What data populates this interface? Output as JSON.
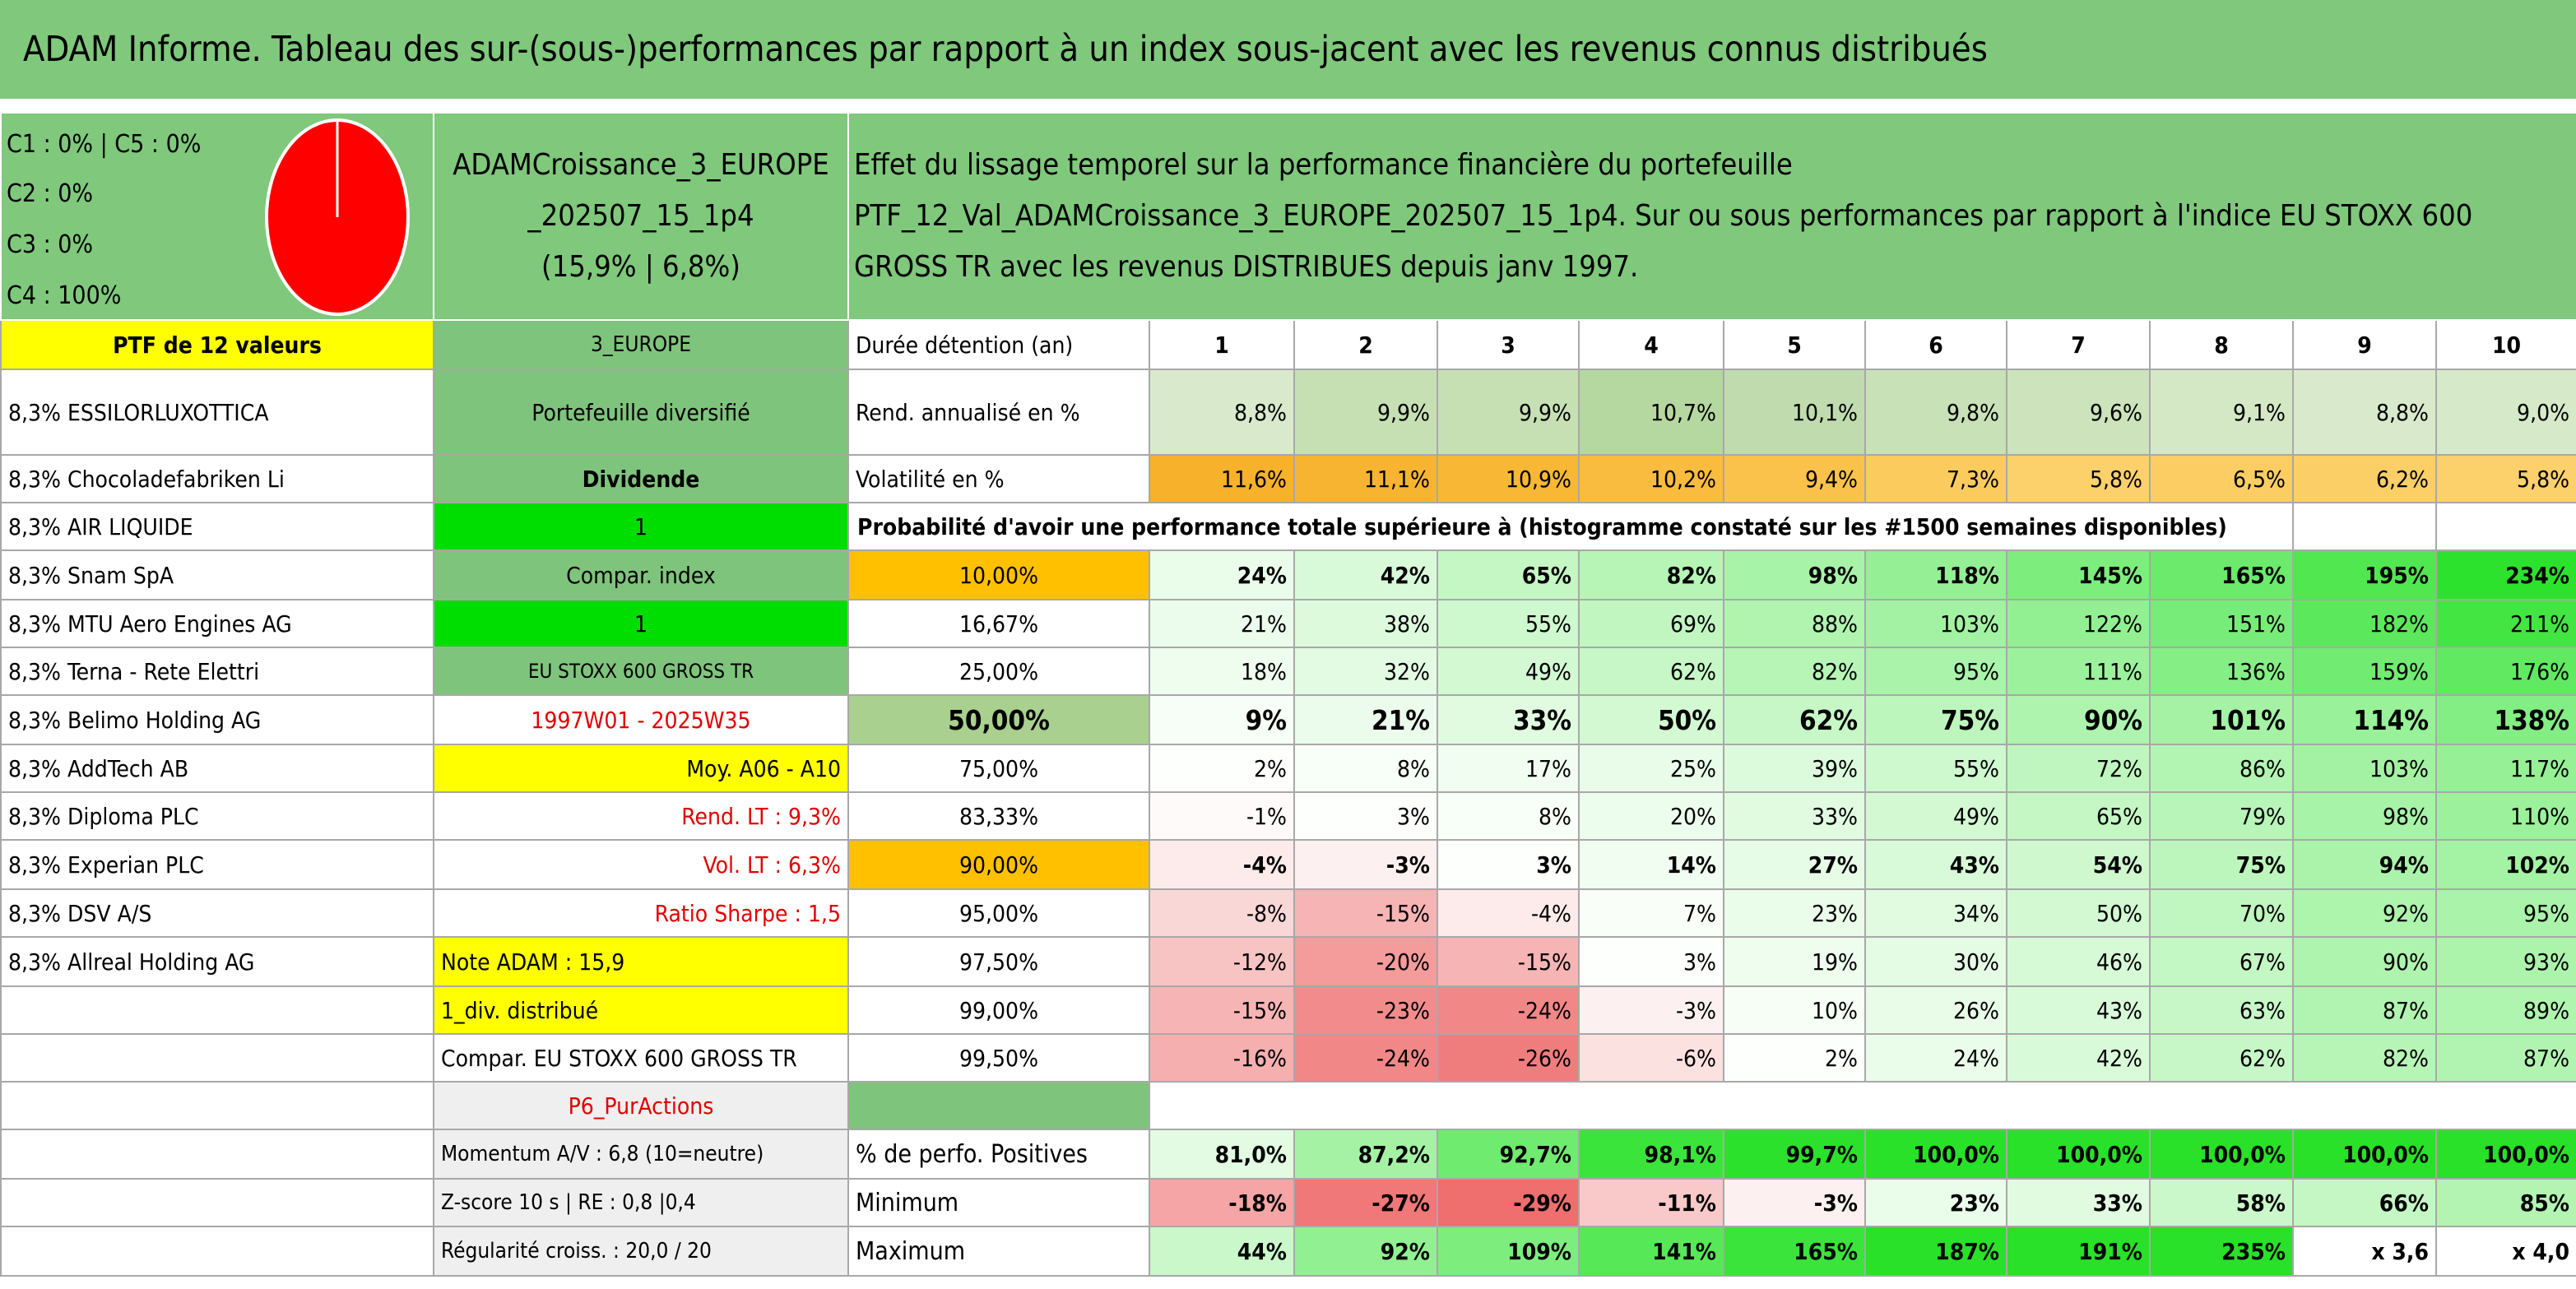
{
  "title": "ADAM Informe. Tableau des sur-(sous-)performances par rapport à un index sous-jacent avec les revenus connus distribués",
  "summary": [
    "C1 : 0% | C5 : 0%",
    "C2 : 0%",
    "C3 : 0%",
    "C4 : 100%"
  ],
  "portfolio": [
    "ADAMCroissance_3_EUROPE",
    "_202507_15_1p4",
    "(15,9% | 6,8%)"
  ],
  "description": [
    "Effet du lissage temporel sur la performance financière du portefeuille",
    "PTF_12_Val_ADAMCroissance_3_EUROPE_202507_15_1p4. Sur ou sous performances par rapport à l'indice EU STOXX 600",
    "GROSS TR avec les revenus DISTRIBUES depuis janv 1997."
  ],
  "portfolio_label": "PTF de 12 valeurs",
  "holdings": [
    "8,3% ESSILORLUXOTTICA",
    "8,3% Chocoladefabriken Li",
    "8,3% AIR LIQUIDE",
    "8,3% Snam SpA",
    "8,3% MTU Aero Engines AG",
    "8,3% Terna - Rete Elettri",
    "8,3% Belimo Holding AG",
    "8,3% AddTech AB",
    "8,3% Diploma PLC",
    "8,3% Experian PLC",
    "8,3% DSV A/S",
    "8,3% Allreal Holding AG"
  ],
  "settings": [
    "3_EUROPE",
    "Portefeuille diversifié",
    "Dividende",
    "1",
    "Compar. index",
    "1",
    "EU STOXX 600 GROSS TR",
    "1997W01 - 2025W35",
    "Moy. A06 - A10",
    "Rend. LT : 9,3%",
    "Vol. LT : 6,3%",
    "Ratio Sharpe : 1,5",
    "Note ADAM : 15,9",
    "1_div. distribué",
    "Compar. EU STOXX 600 GROSS TR",
    "P6_PurActions",
    "Momentum A/V : 6,8 (10=neutre)",
    "Z-score 10 s | RE : 0,8 |0,4",
    "Régularité croiss. : 20,0 / 20"
  ],
  "table": {
    "header_label": "Durée détention (an)",
    "years": [
      1,
      2,
      3,
      4,
      5,
      6,
      7,
      8,
      9,
      10
    ],
    "rows": [
      {
        "label": "Rend. annualisé en %",
        "values": [
          "8,8%",
          "9,9%",
          "9,9%",
          "10,7%",
          "10,1%",
          "9,8%",
          "9,6%",
          "9,1%",
          "8,8%",
          "9,0%"
        ]
      },
      {
        "label": "Volatilité en %",
        "values": [
          "11,6%",
          "11,1%",
          "10,9%",
          "10,2%",
          "9,4%",
          "7,3%",
          "5,8%",
          "6,5%",
          "6,2%",
          "5,8%"
        ]
      }
    ],
    "probability_caption": "Probabilité d'avoir une performance totale supérieure à (histogramme constaté sur les #1500 semaines disponibles)",
    "quantiles": [
      {
        "label": "10,00%",
        "values": [
          "24%",
          "42%",
          "65%",
          "82%",
          "98%",
          "118%",
          "145%",
          "165%",
          "195%",
          "234%"
        ]
      },
      {
        "label": "16,67%",
        "values": [
          "21%",
          "38%",
          "55%",
          "69%",
          "88%",
          "103%",
          "122%",
          "151%",
          "182%",
          "211%"
        ]
      },
      {
        "label": "25,00%",
        "values": [
          "18%",
          "32%",
          "49%",
          "62%",
          "82%",
          "95%",
          "111%",
          "136%",
          "159%",
          "176%"
        ]
      },
      {
        "label": "50,00%",
        "values": [
          "9%",
          "21%",
          "33%",
          "50%",
          "62%",
          "75%",
          "90%",
          "101%",
          "114%",
          "138%"
        ]
      },
      {
        "label": "75,00%",
        "values": [
          "2%",
          "8%",
          "17%",
          "25%",
          "39%",
          "55%",
          "72%",
          "86%",
          "103%",
          "117%"
        ]
      },
      {
        "label": "83,33%",
        "values": [
          "-1%",
          "3%",
          "8%",
          "20%",
          "33%",
          "49%",
          "65%",
          "79%",
          "98%",
          "110%"
        ]
      },
      {
        "label": "90,00%",
        "values": [
          "-4%",
          "-3%",
          "3%",
          "14%",
          "27%",
          "43%",
          "54%",
          "75%",
          "94%",
          "102%"
        ]
      },
      {
        "label": "95,00%",
        "values": [
          "-8%",
          "-15%",
          "-4%",
          "7%",
          "23%",
          "34%",
          "50%",
          "70%",
          "92%",
          "95%"
        ]
      },
      {
        "label": "97,50%",
        "values": [
          "-12%",
          "-20%",
          "-15%",
          "3%",
          "19%",
          "30%",
          "46%",
          "67%",
          "90%",
          "93%"
        ]
      },
      {
        "label": "99,00%",
        "values": [
          "-15%",
          "-23%",
          "-24%",
          "-3%",
          "10%",
          "26%",
          "43%",
          "63%",
          "87%",
          "89%"
        ]
      },
      {
        "label": "99,50%",
        "values": [
          "-16%",
          "-24%",
          "-26%",
          "-6%",
          "2%",
          "24%",
          "42%",
          "62%",
          "82%",
          "87%"
        ]
      }
    ],
    "summary_rows": [
      {
        "label": "% de perfo. Positives",
        "values": [
          "81,0%",
          "87,2%",
          "92,7%",
          "98,1%",
          "99,7%",
          "100,0%",
          "100,0%",
          "100,0%",
          "100,0%",
          "100,0%"
        ]
      },
      {
        "label": "Minimum",
        "values": [
          "-18%",
          "-27%",
          "-29%",
          "-11%",
          "-3%",
          "23%",
          "33%",
          "58%",
          "66%",
          "85%"
        ]
      },
      {
        "label": "Maximum",
        "values": [
          "44%",
          "92%",
          "109%",
          "141%",
          "165%",
          "187%",
          "191%",
          "235%",
          "x 3,6",
          "x 4,0"
        ]
      }
    ]
  }
}
